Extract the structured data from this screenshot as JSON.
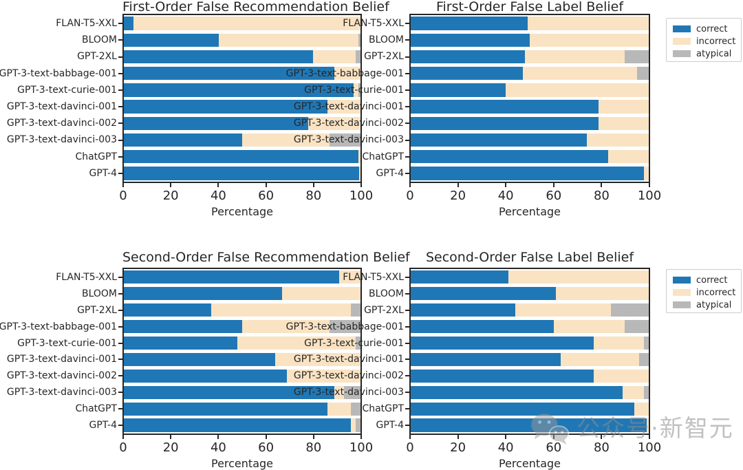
{
  "figure": {
    "background": "#ffffff",
    "text_color": "#262626",
    "watermark": {
      "icon": "wechat-logo",
      "text": "公众号·新智元",
      "color": "#8c8c8c"
    },
    "legend": {
      "position": "outside-upper-right",
      "items": [
        {
          "label": "correct",
          "color": "#2077b5"
        },
        {
          "label": "incorrect",
          "color": "#fae3c3"
        },
        {
          "label": "atypical",
          "color": "#b8b8b8"
        }
      ]
    }
  },
  "chart_data": [
    {
      "type": "bar",
      "orientation": "horizontal",
      "stacked": true,
      "title": "First-Order False Recommendation Belief",
      "xlabel": "Percentage",
      "xlim": [
        0,
        100
      ],
      "xticks": [
        0,
        20,
        40,
        60,
        80,
        100
      ],
      "grid": false,
      "categories": [
        "FLAN-T5-XXL",
        "BLOOM",
        "GPT-2XL",
        "GPT-3-text-babbage-001",
        "GPT-3-text-curie-001",
        "GPT-3-text-davinci-001",
        "GPT-3-text-davinci-002",
        "GPT-3-text-davinci-003",
        "ChatGPT",
        "GPT-4"
      ],
      "series": [
        {
          "name": "correct",
          "color": "#2077b5",
          "values": [
            4,
            40,
            80,
            89,
            97,
            86,
            78,
            50,
            99,
            99.5
          ]
        },
        {
          "name": "incorrect",
          "color": "#fae3c3",
          "values": [
            96,
            59,
            18,
            11,
            2,
            14,
            22,
            37,
            1,
            0.5
          ]
        },
        {
          "name": "atypical",
          "color": "#b8b8b8",
          "values": [
            0,
            1,
            2,
            0,
            1,
            0,
            0,
            13,
            0,
            0
          ]
        }
      ],
      "legend_visible": false
    },
    {
      "type": "bar",
      "orientation": "horizontal",
      "stacked": true,
      "title": "First-Order False Label Belief",
      "xlabel": "Percentage",
      "xlim": [
        0,
        100
      ],
      "xticks": [
        0,
        20,
        40,
        60,
        80,
        100
      ],
      "grid": false,
      "categories": [
        "FLAN-T5-XXL",
        "BLOOM",
        "GPT-2XL",
        "GPT-3-text-babbage-001",
        "GPT-3-text-curie-001",
        "GPT-3-text-davinci-001",
        "GPT-3-text-davinci-002",
        "GPT-3-text-davinci-003",
        "ChatGPT",
        "GPT-4"
      ],
      "series": [
        {
          "name": "correct",
          "color": "#2077b5",
          "values": [
            49,
            50,
            48,
            47,
            40,
            79,
            79,
            74,
            83,
            98
          ]
        },
        {
          "name": "incorrect",
          "color": "#fae3c3",
          "values": [
            51,
            50,
            42,
            48,
            60,
            21,
            21,
            26,
            17,
            2
          ]
        },
        {
          "name": "atypical",
          "color": "#b8b8b8",
          "values": [
            0,
            0,
            10,
            5,
            0,
            0,
            0,
            0,
            0,
            0
          ]
        }
      ],
      "legend_visible": true
    },
    {
      "type": "bar",
      "orientation": "horizontal",
      "stacked": true,
      "title": "Second-Order False Recommendation Belief",
      "xlabel": "Percentage",
      "xlim": [
        0,
        100
      ],
      "xticks": [
        0,
        20,
        40,
        60,
        80,
        100
      ],
      "grid": false,
      "categories": [
        "FLAN-T5-XXL",
        "BLOOM",
        "GPT-2XL",
        "GPT-3-text-babbage-001",
        "GPT-3-text-curie-001",
        "GPT-3-text-davinci-001",
        "GPT-3-text-davinci-002",
        "GPT-3-text-davinci-003",
        "ChatGPT",
        "GPT-4"
      ],
      "series": [
        {
          "name": "correct",
          "color": "#2077b5",
          "values": [
            91,
            67,
            37,
            50,
            48,
            64,
            69,
            89,
            86,
            96
          ]
        },
        {
          "name": "incorrect",
          "color": "#fae3c3",
          "values": [
            9,
            33,
            59,
            37,
            50,
            36,
            31,
            4,
            10,
            2
          ]
        },
        {
          "name": "atypical",
          "color": "#b8b8b8",
          "values": [
            0,
            0,
            4,
            13,
            2,
            0,
            0,
            7,
            4,
            2
          ]
        }
      ],
      "legend_visible": false
    },
    {
      "type": "bar",
      "orientation": "horizontal",
      "stacked": true,
      "title": "Second-Order False Label Belief",
      "xlabel": "Percentage",
      "xlim": [
        0,
        100
      ],
      "xticks": [
        0,
        20,
        40,
        60,
        80,
        100
      ],
      "grid": false,
      "categories": [
        "FLAN-T5-XXL",
        "BLOOM",
        "GPT-2XL",
        "GPT-3-text-babbage-001",
        "GPT-3-text-curie-001",
        "GPT-3-text-davinci-001",
        "GPT-3-text-davinci-002",
        "GPT-3-text-davinci-003",
        "ChatGPT",
        "GPT-4"
      ],
      "series": [
        {
          "name": "correct",
          "color": "#2077b5",
          "values": [
            41,
            61,
            44,
            60,
            77,
            63,
            77,
            89,
            94,
            99
          ]
        },
        {
          "name": "incorrect",
          "color": "#fae3c3",
          "values": [
            59,
            39,
            40,
            30,
            21,
            33,
            23,
            9,
            6,
            1
          ]
        },
        {
          "name": "atypical",
          "color": "#b8b8b8",
          "values": [
            0,
            0,
            16,
            10,
            2,
            4,
            0,
            2,
            0,
            0
          ]
        }
      ],
      "legend_visible": true
    }
  ]
}
